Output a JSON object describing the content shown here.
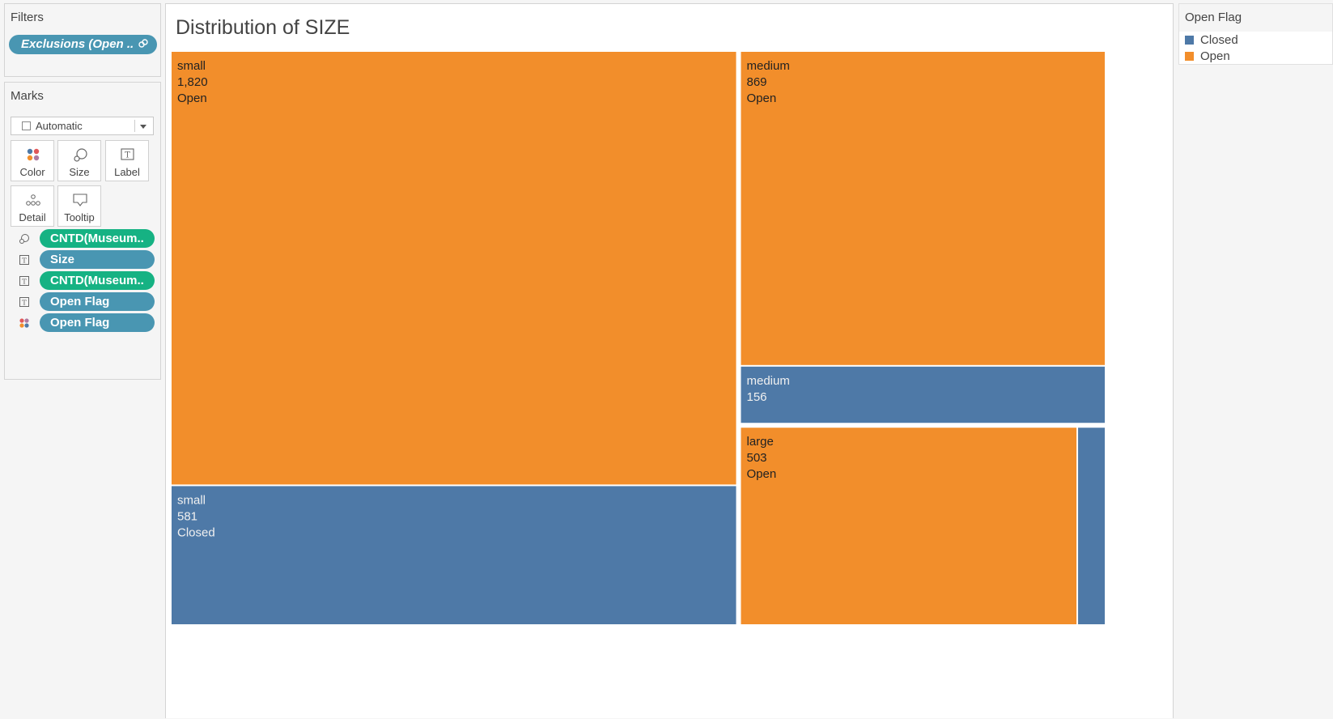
{
  "filters": {
    "title": "Filters",
    "pill_label": "Exclusions (Open ..",
    "pill_icon": "link-icon"
  },
  "marks": {
    "title": "Marks",
    "mark_type": "Automatic",
    "cards": [
      {
        "label": "Color",
        "icon": "color-icon"
      },
      {
        "label": "Size",
        "icon": "size-icon"
      },
      {
        "label": "Label",
        "icon": "label-icon"
      },
      {
        "label": "Detail",
        "icon": "detail-icon"
      },
      {
        "label": "Tooltip",
        "icon": "tooltip-icon"
      }
    ],
    "fields": [
      {
        "label": "CNTD(Museum..",
        "icon": "size-icon",
        "color": "green"
      },
      {
        "label": "Size",
        "icon": "label-icon",
        "color": "blue"
      },
      {
        "label": "CNTD(Museum..",
        "icon": "label-icon",
        "color": "green"
      },
      {
        "label": "Open Flag",
        "icon": "label-icon",
        "color": "blue"
      },
      {
        "label": "Open Flag",
        "icon": "color-icon",
        "color": "blue"
      }
    ]
  },
  "chart_data": {
    "type": "treemap",
    "title": "Distribution of SIZE",
    "colors": {
      "Open": "#f28e2b",
      "Closed": "#4e79a7"
    },
    "items": [
      {
        "size": "small",
        "flag": "Open",
        "value": 1820,
        "label_lines": [
          "small",
          "1,820",
          "Open"
        ]
      },
      {
        "size": "small",
        "flag": "Closed",
        "value": 581,
        "label_lines": [
          "small",
          "581",
          "Closed"
        ]
      },
      {
        "size": "medium",
        "flag": "Open",
        "value": 869,
        "label_lines": [
          "medium",
          "869",
          "Open"
        ]
      },
      {
        "size": "medium",
        "flag": "Closed",
        "value": 156,
        "label_lines": [
          "medium",
          "156"
        ]
      },
      {
        "size": "large",
        "flag": "Open",
        "value": 503,
        "label_lines": [
          "large",
          "503",
          "Open"
        ]
      },
      {
        "size": "large",
        "flag": "Closed",
        "value": 40,
        "label_lines": []
      }
    ]
  },
  "legend": {
    "title": "Open Flag",
    "items": [
      {
        "label": "Closed",
        "color": "#4e79a7"
      },
      {
        "label": "Open",
        "color": "#f28e2b"
      }
    ]
  }
}
